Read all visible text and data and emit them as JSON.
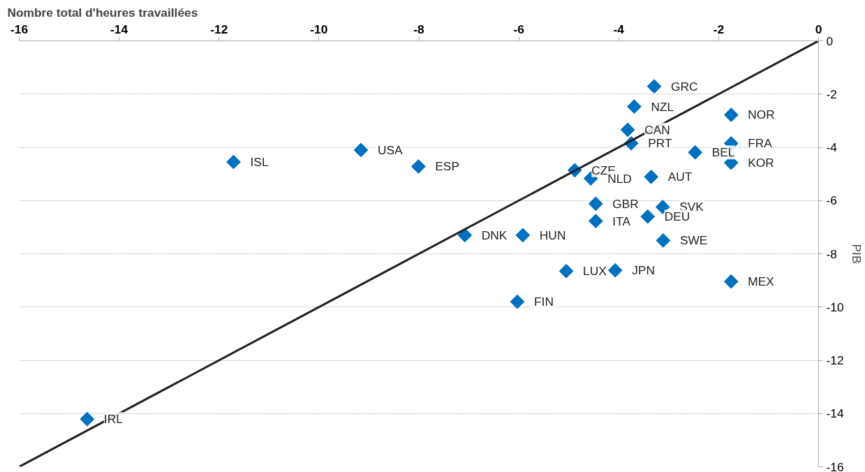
{
  "chart_data": {
    "type": "scatter",
    "xlabel": "Nombre total d'heures travaillées",
    "ylabel": "PIB",
    "xlim": [
      -16,
      0
    ],
    "xticks": [
      -16,
      -14,
      -12,
      -10,
      -8,
      -6,
      -4,
      -2,
      0
    ],
    "ylim": [
      -16,
      0
    ],
    "yticks": [
      -16,
      -14,
      -12,
      -10,
      -8,
      -6,
      -4,
      -2,
      0
    ],
    "grid": "y",
    "series": [
      {
        "marker": "diamond",
        "color": "#0070c0",
        "x": [
          -3.29,
          -3.69,
          -1.75,
          -3.82,
          -3.75,
          -1.75,
          -2.47,
          -1.75,
          -9.16,
          -11.71,
          -8.01,
          -4.88,
          -4.56,
          -3.35,
          -4.46,
          -3.12,
          -3.42,
          -4.46,
          -7.08,
          -5.92,
          -3.11,
          -5.05,
          -4.07,
          -1.75,
          -6.03,
          -14.64
        ],
        "values": [
          -1.71,
          -2.47,
          -2.78,
          -3.34,
          -3.85,
          -3.85,
          -4.19,
          -4.58,
          -4.1,
          -4.55,
          -4.72,
          -4.86,
          -5.17,
          -5.11,
          -6.12,
          -6.24,
          -6.6,
          -6.77,
          -7.3,
          -7.3,
          -7.5,
          -8.65,
          -8.62,
          -9.04,
          -9.8,
          -14.21
        ]
      },
      {
        "type": "line",
        "color": "#231f20",
        "x": [
          -16,
          0
        ],
        "values": [
          -16,
          0
        ]
      }
    ],
    "annotations": [
      {
        "text": "GRC",
        "x": -3.29,
        "y": -1.71
      },
      {
        "text": "NZL",
        "x": -3.69,
        "y": -2.47
      },
      {
        "text": "NOR",
        "x": -1.75,
        "y": -2.78
      },
      {
        "text": "CAN",
        "x": -3.82,
        "y": -3.34
      },
      {
        "text": "PRT",
        "x": -3.75,
        "y": -3.85
      },
      {
        "text": "FRA",
        "x": -1.75,
        "y": -3.85
      },
      {
        "text": "BEL",
        "x": -2.47,
        "y": -4.19
      },
      {
        "text": "KOR",
        "x": -1.75,
        "y": -4.58
      },
      {
        "text": "USA",
        "x": -9.16,
        "y": -4.1
      },
      {
        "text": "ISL",
        "x": -11.71,
        "y": -4.55
      },
      {
        "text": "ESP",
        "x": -8.01,
        "y": -4.72
      },
      {
        "text": "CZE",
        "x": -4.88,
        "y": -4.86
      },
      {
        "text": "NLD",
        "x": -4.56,
        "y": -5.17
      },
      {
        "text": "AUT",
        "x": -3.35,
        "y": -5.11
      },
      {
        "text": "GBR",
        "x": -4.46,
        "y": -6.12
      },
      {
        "text": "SVK",
        "x": -3.12,
        "y": -6.24
      },
      {
        "text": "DEU",
        "x": -3.42,
        "y": -6.6
      },
      {
        "text": "ITA",
        "x": -4.46,
        "y": -6.77
      },
      {
        "text": "DNK",
        "x": -7.08,
        "y": -7.3
      },
      {
        "text": "HUN",
        "x": -5.92,
        "y": -7.3
      },
      {
        "text": "SWE",
        "x": -3.11,
        "y": -7.5
      },
      {
        "text": "LUX",
        "x": -5.05,
        "y": -8.65
      },
      {
        "text": "JPN",
        "x": -4.07,
        "y": -8.62
      },
      {
        "text": "MEX",
        "x": -1.75,
        "y": -9.04
      },
      {
        "text": "FIN",
        "x": -6.03,
        "y": -9.8
      },
      {
        "text": "IRL",
        "x": -14.64,
        "y": -14.21
      }
    ]
  }
}
